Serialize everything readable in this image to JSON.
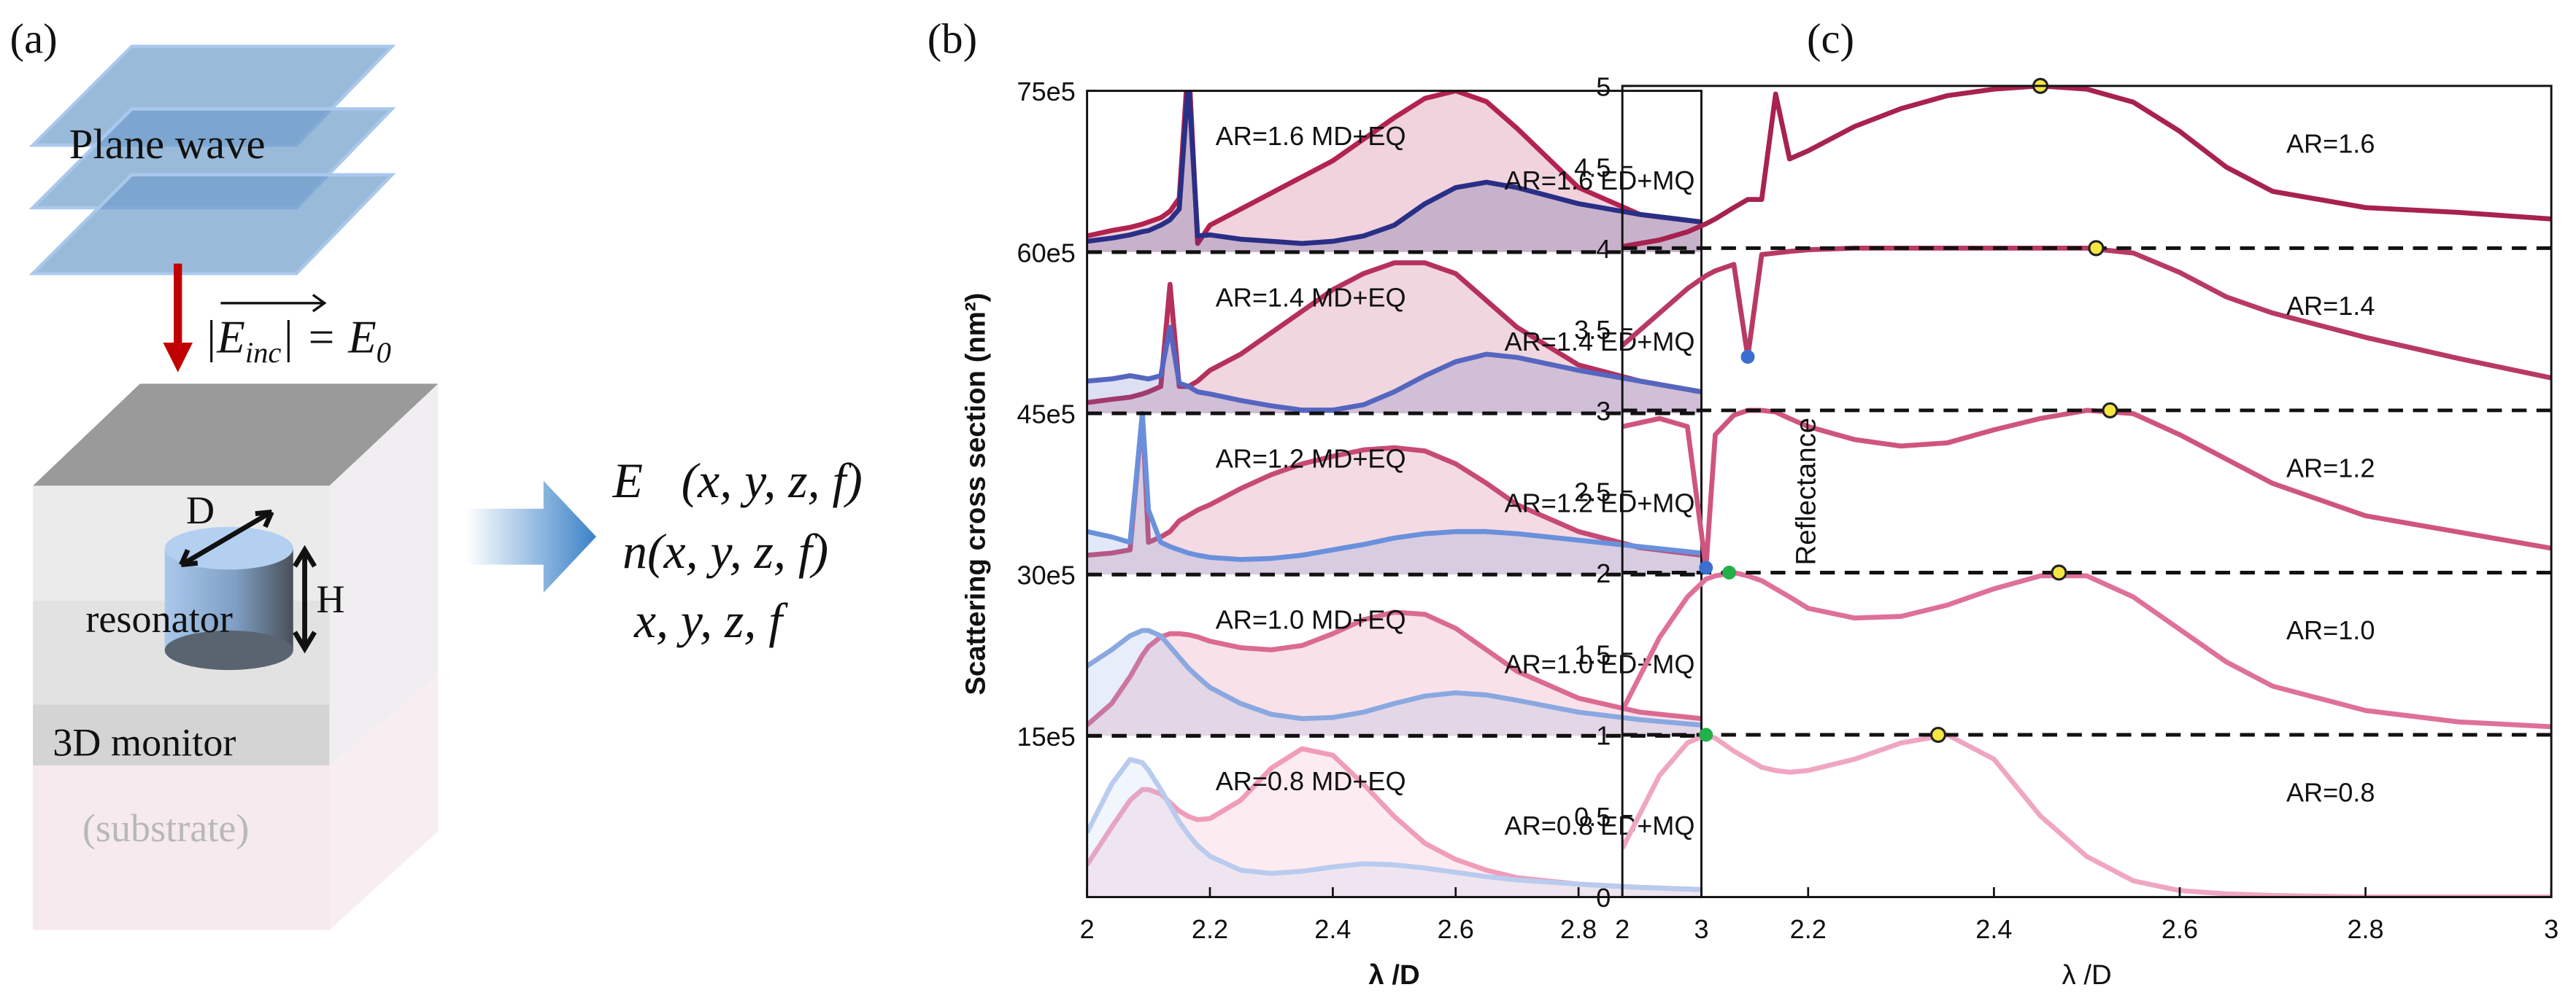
{
  "panel_labels": [
    "(a)",
    "(b)",
    "(c)"
  ],
  "schematic": {
    "plane_wave": "Plane wave",
    "field": [
      "|",
      "E",
      "inc",
      "| = E",
      "0"
    ],
    "D": "D",
    "H": "H",
    "resonator": "resonator",
    "monitor": "3D monitor",
    "substrate": "(substrate)"
  },
  "outputs": [
    "E⃗(x, y, z, f)",
    "n(x, y, z, f)",
    "x, y, z, f"
  ],
  "chart_data": [
    {
      "type": "line",
      "area": true,
      "xlabel": "λ /D",
      "ylabel": "Scattering cross section (nm²)",
      "xlim": [
        2,
        3
      ],
      "xticks": [
        2,
        2.2,
        2.4,
        2.6,
        2.8,
        3
      ],
      "ylim": [
        0,
        7500000.0
      ],
      "yticks": [
        {
          "value": 1500000.0,
          "label": "15e5"
        },
        {
          "value": 3000000.0,
          "label": "30e5"
        },
        {
          "value": 4500000.0,
          "label": "45e5"
        },
        {
          "value": 6000000.0,
          "label": "60e5"
        },
        {
          "value": 7500000.0,
          "label": "75e5"
        }
      ],
      "x": [
        2,
        2.04,
        2.07,
        2.09,
        2.1,
        2.12,
        2.135,
        2.15,
        2.165,
        2.18,
        2.2,
        2.25,
        2.3,
        2.35,
        2.4,
        2.45,
        2.5,
        2.55,
        2.6,
        2.65,
        2.7,
        2.8,
        2.9,
        3
      ],
      "series": [
        {
          "name": "AR=1.6 MD+EQ",
          "color": "#b2234f",
          "label_color": "#b2234f",
          "offset": 6000000.0,
          "values": [
            6150000.0,
            6200000.0,
            6230000.0,
            6260000.0,
            6280000.0,
            6320000.0,
            6380000.0,
            6500000.0,
            7800000.0,
            6080000.0,
            6250000.0,
            6400000.0,
            6550000.0,
            6700000.0,
            6850000.0,
            7050000.0,
            7250000.0,
            7430000.0,
            7500000.0,
            7400000.0,
            7150000.0,
            6600000.0,
            6350000.0,
            6280000.0
          ]
        },
        {
          "name": "AR=1.6 ED+MQ",
          "color": "#2a2f86",
          "label_color": "#2d3a9c",
          "offset": 6000000.0,
          "values": [
            6100000.0,
            6130000.0,
            6160000.0,
            6190000.0,
            6200000.0,
            6250000.0,
            6300000.0,
            6400000.0,
            7600000.0,
            6150000.0,
            6160000.0,
            6120000.0,
            6100000.0,
            6080000.0,
            6100000.0,
            6150000.0,
            6250000.0,
            6450000.0,
            6600000.0,
            6650000.0,
            6600000.0,
            6450000.0,
            6350000.0,
            6280000.0
          ]
        },
        {
          "name": "AR=1.4 MD+EQ",
          "color": "#b5305b",
          "label_color": "#b2234f",
          "offset": 4500000.0,
          "values": [
            4600000.0,
            4630000.0,
            4650000.0,
            4680000.0,
            4700000.0,
            4750000.0,
            5700000.0,
            4750000.0,
            4750000.0,
            4800000.0,
            4900000.0,
            5050000.0,
            5250000.0,
            5450000.0,
            5650000.0,
            5800000.0,
            5900000.0,
            5900000.0,
            5800000.0,
            5550000.0,
            5300000.0,
            4950000.0,
            4800000.0,
            4700000.0
          ]
        },
        {
          "name": "AR=1.4 ED+MQ",
          "color": "#5566c0",
          "label_color": "#2d3a9c",
          "offset": 4500000.0,
          "values": [
            4800000.0,
            4820000.0,
            4850000.0,
            4830000.0,
            4820000.0,
            4850000.0,
            5300000.0,
            4780000.0,
            4750000.0,
            4700000.0,
            4680000.0,
            4620000.0,
            4570000.0,
            4530000.0,
            4530000.0,
            4580000.0,
            4700000.0,
            4850000.0,
            4980000.0,
            5050000.0,
            5020000.0,
            4900000.0,
            4800000.0,
            4700000.0
          ]
        },
        {
          "name": "AR=1.2 MD+EQ",
          "color": "#c74a74",
          "label_color": "#b2234f",
          "offset": 3000000.0,
          "values": [
            3180000.0,
            3200000.0,
            3230000.0,
            4500000.0,
            3300000.0,
            3350000.0,
            3400000.0,
            3500000.0,
            3550000.0,
            3600000.0,
            3650000.0,
            3800000.0,
            3930000.0,
            4030000.0,
            4100000.0,
            4160000.0,
            4180000.0,
            4150000.0,
            4030000.0,
            3850000.0,
            3650000.0,
            3400000.0,
            3250000.0,
            3180000.0
          ]
        },
        {
          "name": "AR=1.2 ED+MQ",
          "color": "#6a90dc",
          "label_color": "#2d3a9c",
          "offset": 3000000.0,
          "values": [
            3400000.0,
            3350000.0,
            3300000.0,
            4500000.0,
            3600000.0,
            3300000.0,
            3260000.0,
            3230000.0,
            3200000.0,
            3180000.0,
            3160000.0,
            3140000.0,
            3150000.0,
            3180000.0,
            3230000.0,
            3280000.0,
            3340000.0,
            3380000.0,
            3400000.0,
            3400000.0,
            3380000.0,
            3320000.0,
            3260000.0,
            3200000.0
          ]
        },
        {
          "name": "AR=1.0 MD+EQ",
          "color": "#db6a92",
          "label_color": "#b2234f",
          "offset": 1500000.0,
          "values": [
            1600000.0,
            1800000.0,
            2050000.0,
            2250000.0,
            2330000.0,
            2420000.0,
            2450000.0,
            2450000.0,
            2440000.0,
            2420000.0,
            2380000.0,
            2320000.0,
            2300000.0,
            2340000.0,
            2450000.0,
            2580000.0,
            2650000.0,
            2630000.0,
            2500000.0,
            2300000.0,
            2100000.0,
            1850000.0,
            1720000.0,
            1660000.0
          ]
        },
        {
          "name": "AR=1.0 ED+MQ",
          "color": "#8aa8e0",
          "label_color": "#2d3a9c",
          "offset": 1500000.0,
          "values": [
            2150000.0,
            2300000.0,
            2430000.0,
            2480000.0,
            2480000.0,
            2430000.0,
            2330000.0,
            2230000.0,
            2130000.0,
            2050000.0,
            1950000.0,
            1800000.0,
            1700000.0,
            1660000.0,
            1670000.0,
            1720000.0,
            1800000.0,
            1870000.0,
            1900000.0,
            1880000.0,
            1830000.0,
            1720000.0,
            1650000.0,
            1600000.0
          ]
        },
        {
          "name": "AR=0.8 MD+EQ",
          "color": "#f09cbb",
          "label_color": "#b2234f",
          "offset": 0,
          "values": [
            300000.0,
            650000.0,
            900000.0,
            1000000.0,
            1000000.0,
            960000.0,
            880000.0,
            800000.0,
            750000.0,
            720000.0,
            730000.0,
            900000.0,
            1200000.0,
            1380000.0,
            1320000.0,
            1050000.0,
            750000.0,
            500000.0,
            350000.0,
            250000.0,
            180000.0,
            120000.0,
            90000.0,
            70000.0
          ]
        },
        {
          "name": "AR=0.8 ED+MQ",
          "color": "#b9cbee",
          "label_color": "#2d3a9c",
          "offset": 0,
          "values": [
            600000.0,
            1050000.0,
            1280000.0,
            1250000.0,
            1180000.0,
            1000000.0,
            850000.0,
            700000.0,
            580000.0,
            480000.0,
            380000.0,
            250000.0,
            220000.0,
            240000.0,
            280000.0,
            310000.0,
            300000.0,
            270000.0,
            230000.0,
            190000.0,
            160000.0,
            120000.0,
            90000.0,
            70000.0
          ]
        }
      ]
    },
    {
      "type": "line",
      "area": false,
      "xlabel": "λ /D",
      "ylabel": "Reflectance",
      "xlim": [
        2,
        3
      ],
      "xticks": [
        2,
        2.2,
        2.4,
        2.6,
        2.8,
        3
      ],
      "ylim": [
        0,
        5
      ],
      "yticks": [
        0,
        0.5,
        1,
        1.5,
        2,
        2.5,
        3,
        3.5,
        4,
        4.5,
        5
      ],
      "x": [
        2,
        2.04,
        2.07,
        2.09,
        2.1,
        2.12,
        2.135,
        2.15,
        2.165,
        2.18,
        2.2,
        2.25,
        2.3,
        2.35,
        2.4,
        2.45,
        2.5,
        2.55,
        2.6,
        2.65,
        2.7,
        2.8,
        2.9,
        3
      ],
      "series": [
        {
          "name": "AR=1.6",
          "color": "#a8224f",
          "offset": 4,
          "values": [
            4.01,
            4.05,
            4.1,
            4.15,
            4.18,
            4.25,
            4.3,
            4.3,
            4.95,
            4.55,
            4.6,
            4.75,
            4.86,
            4.94,
            4.98,
            5,
            4.98,
            4.9,
            4.72,
            4.5,
            4.35,
            4.25,
            4.22,
            4.18
          ]
        },
        {
          "name": "AR=1.4",
          "color": "#b83a63",
          "offset": 3,
          "values": [
            3.4,
            3.6,
            3.75,
            3.83,
            3.86,
            3.9,
            3.33,
            3.96,
            3.97,
            3.98,
            3.99,
            4,
            4,
            4,
            4,
            4,
            4,
            3.97,
            3.85,
            3.7,
            3.6,
            3.45,
            3.32,
            3.2
          ]
        },
        {
          "name": "AR=1.2",
          "color": "#cf5580",
          "offset": 2,
          "values": [
            2.9,
            2.95,
            2.9,
            2.03,
            2.85,
            2.97,
            3,
            3,
            2.99,
            2.95,
            2.9,
            2.82,
            2.78,
            2.8,
            2.88,
            2.95,
            3,
            2.98,
            2.85,
            2.7,
            2.55,
            2.35,
            2.25,
            2.15
          ]
        },
        {
          "name": "AR=1.0",
          "color": "#de7099",
          "offset": 1,
          "values": [
            1.15,
            1.6,
            1.85,
            1.96,
            1.98,
            2,
            1.98,
            1.95,
            1.9,
            1.85,
            1.78,
            1.72,
            1.73,
            1.8,
            1.9,
            1.98,
            1.98,
            1.85,
            1.65,
            1.45,
            1.3,
            1.15,
            1.08,
            1.05
          ]
        },
        {
          "name": "AR=0.8",
          "color": "#f0a6c2",
          "offset": 0,
          "values": [
            0.3,
            0.75,
            0.95,
            1,
            0.98,
            0.9,
            0.85,
            0.8,
            0.78,
            0.77,
            0.78,
            0.85,
            0.95,
            1,
            0.85,
            0.5,
            0.25,
            0.1,
            0.04,
            0.02,
            0.01,
            0,
            0,
            0
          ]
        }
      ],
      "markers": {
        "x": [
          2.45,
          2.51,
          2.135,
          2.525,
          2.09,
          2.115,
          2.47,
          2.09,
          2.34
        ],
        "y": [
          5,
          4,
          3.33,
          3,
          2.03,
          2,
          2,
          1,
          1
        ],
        "colors": [
          "#f5e642",
          "#f5e642",
          "#3a6fd0",
          "#f5e642",
          "#3a6fd0",
          "#22b04b",
          "#f5e642",
          "#22b04b",
          "#f5e642"
        ]
      }
    }
  ]
}
